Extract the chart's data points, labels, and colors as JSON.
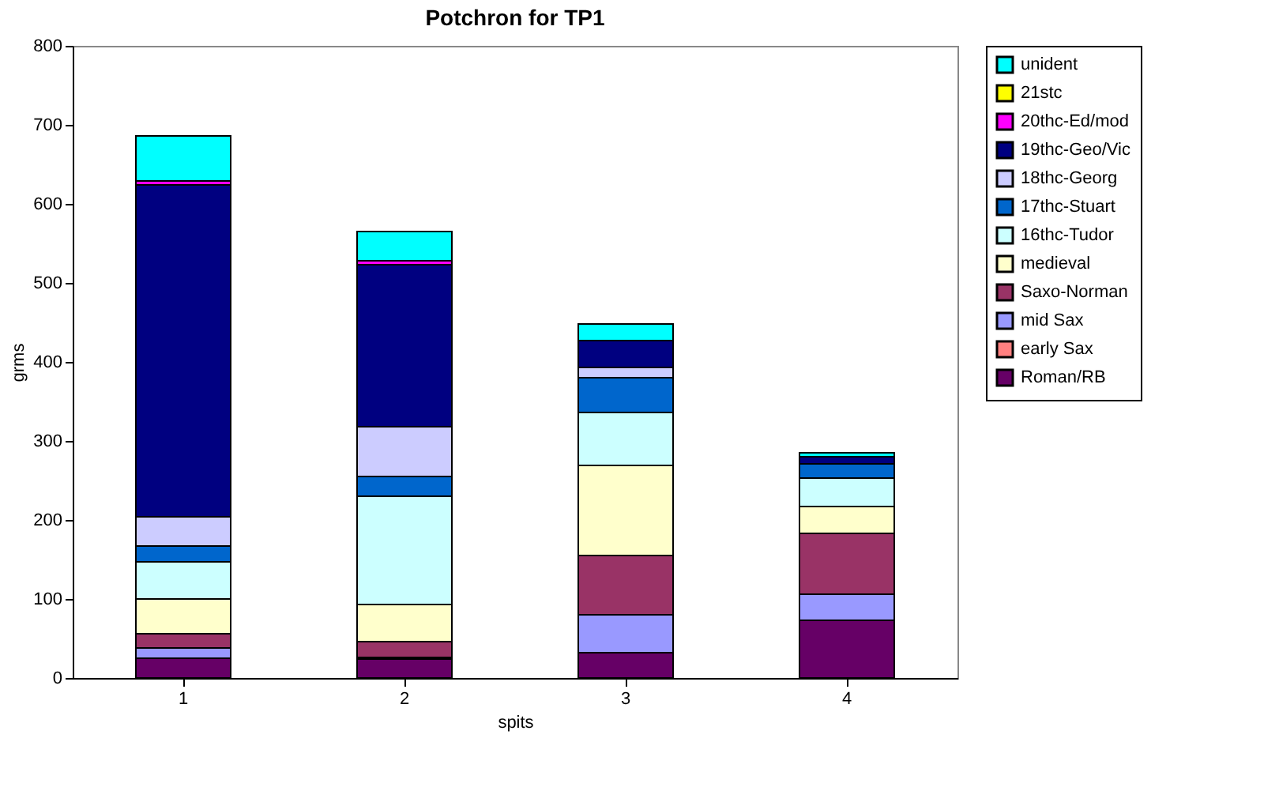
{
  "chart_data": {
    "type": "bar",
    "stacked": true,
    "title": "Potchron for TP1",
    "xlabel": "spits",
    "ylabel": "grms",
    "categories": [
      "1",
      "2",
      "3",
      "4"
    ],
    "ylim": [
      0,
      800
    ],
    "yticks": [
      0,
      100,
      200,
      300,
      400,
      500,
      600,
      700,
      800
    ],
    "grid": false,
    "legend": "right",
    "series": [
      {
        "name": "Roman/RB",
        "color": "#660066",
        "values": [
          25,
          24,
          32,
          73
        ]
      },
      {
        "name": "early Sax",
        "color": "#ff8080",
        "values": [
          0,
          0,
          0,
          0
        ]
      },
      {
        "name": "mid Sax",
        "color": "#9999ff",
        "values": [
          13,
          2,
          48,
          33
        ]
      },
      {
        "name": "Saxo-Norman",
        "color": "#993366",
        "values": [
          18,
          20,
          75,
          77
        ]
      },
      {
        "name": "medieval",
        "color": "#ffffcc",
        "values": [
          44,
          47,
          114,
          34
        ]
      },
      {
        "name": "16thc-Tudor",
        "color": "#ccffff",
        "values": [
          47,
          137,
          67,
          36
        ]
      },
      {
        "name": "17thc-Stuart",
        "color": "#0066cc",
        "values": [
          20,
          25,
          44,
          18
        ]
      },
      {
        "name": "18thc-Georg",
        "color": "#ccccff",
        "values": [
          37,
          63,
          13,
          0
        ]
      },
      {
        "name": "19thc-Geo/Vic",
        "color": "#000080",
        "values": [
          420,
          205,
          34,
          9
        ]
      },
      {
        "name": "20thc-Ed/mod",
        "color": "#ff00ff",
        "values": [
          5,
          5,
          0,
          0
        ]
      },
      {
        "name": "21stc",
        "color": "#ffff00",
        "values": [
          0,
          0,
          0,
          0
        ]
      },
      {
        "name": "unident",
        "color": "#00ffff",
        "values": [
          57,
          37,
          21,
          5
        ]
      }
    ]
  }
}
